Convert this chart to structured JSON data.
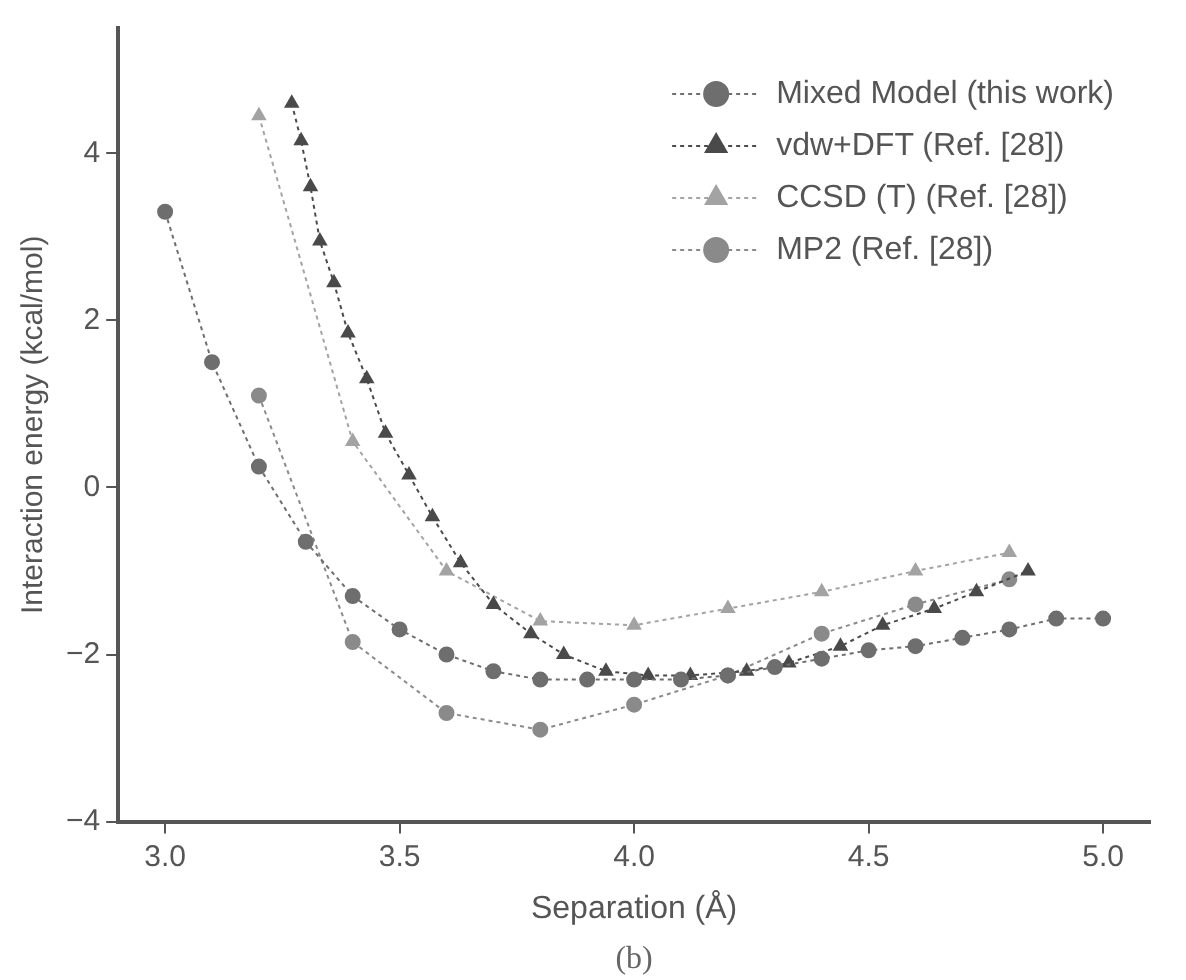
{
  "chart_data": {
    "type": "line",
    "xlabel": "Separation (Å)",
    "ylabel": "Interaction energy (kcal/mol)",
    "annotations": [
      "(b)"
    ],
    "xlim": [
      2.9,
      5.1
    ],
    "xticks": [
      {
        "value": 3.0,
        "label": "3.0"
      },
      {
        "value": 3.5,
        "label": "3.5"
      },
      {
        "value": 4.0,
        "label": "4.0"
      },
      {
        "value": 4.5,
        "label": "4.5"
      },
      {
        "value": 5.0,
        "label": "5.0"
      }
    ],
    "ylim": [
      -4,
      5.5
    ],
    "yticks": [
      -4,
      -2,
      0,
      2,
      4
    ],
    "grid": false,
    "legend": "top right",
    "line_style": "dotted",
    "series": [
      {
        "name": "Mixed Model (this work)",
        "color": "#6e6e6e",
        "marker": "circle",
        "x": [
          3.0,
          3.1,
          3.2,
          3.3,
          3.4,
          3.5,
          3.6,
          3.7,
          3.8,
          3.9,
          4.0,
          4.1,
          4.2,
          4.3,
          4.4,
          4.5,
          4.6,
          4.7,
          4.8,
          4.9,
          5.0
        ],
        "values": [
          3.3,
          1.5,
          0.25,
          -0.65,
          -1.3,
          -1.7,
          -2.0,
          -2.2,
          -2.3,
          -2.3,
          -2.3,
          -2.3,
          -2.25,
          -2.15,
          -2.05,
          -1.95,
          -1.9,
          -1.8,
          -1.7,
          -1.57,
          -1.57
        ]
      },
      {
        "name": "vdw+DFT (Ref. [28])",
        "color": "#4a4a4a",
        "marker": "triangle",
        "x": [
          3.27,
          3.29,
          3.31,
          3.33,
          3.36,
          3.39,
          3.43,
          3.47,
          3.52,
          3.57,
          3.63,
          3.7,
          3.78,
          3.85,
          3.94,
          4.03,
          4.12,
          4.24,
          4.33,
          4.44,
          4.53,
          4.64,
          4.73,
          4.84
        ],
        "values": [
          4.6,
          4.15,
          3.6,
          2.95,
          2.45,
          1.85,
          1.3,
          0.65,
          0.15,
          -0.35,
          -0.9,
          -1.4,
          -1.75,
          -2.0,
          -2.2,
          -2.25,
          -2.25,
          -2.2,
          -2.1,
          -1.9,
          -1.65,
          -1.45,
          -1.25,
          -1.0
        ]
      },
      {
        "name": "CCSD (T) (Ref. [28])",
        "color": "#a3a3a3",
        "marker": "triangle",
        "x": [
          3.2,
          3.4,
          3.6,
          3.8,
          4.0,
          4.2,
          4.4,
          4.6,
          4.8
        ],
        "values": [
          4.45,
          0.55,
          -1.0,
          -1.6,
          -1.65,
          -1.45,
          -1.25,
          -1.0,
          -0.78
        ]
      },
      {
        "name": "MP2 (Ref. [28])",
        "color": "#8a8a8a",
        "marker": "circle",
        "x": [
          3.2,
          3.4,
          3.6,
          3.8,
          4.0,
          4.2,
          4.4,
          4.6,
          4.8
        ],
        "values": [
          1.1,
          -1.85,
          -2.7,
          -2.9,
          -2.6,
          -2.25,
          -1.75,
          -1.4,
          -1.1
        ]
      }
    ]
  }
}
